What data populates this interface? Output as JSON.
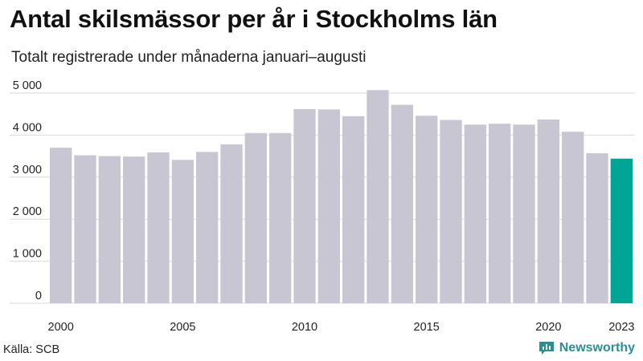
{
  "header": {
    "title": "Antal skilsmässor per år i Stockholms län",
    "subtitle": "Totalt registrerade under månaderna januari–augusti"
  },
  "footer": {
    "source": "Källa: SCB",
    "brand": "Newsworthy"
  },
  "colors": {
    "bar": "#c8c6d2",
    "highlight": "#00a596",
    "grid": "#d8d8d8",
    "brand": "#2c8f8f"
  },
  "chart_data": {
    "type": "bar",
    "title": "Antal skilsmässor per år i Stockholms län",
    "subtitle": "Totalt registrerade under månaderna januari–augusti",
    "xlabel": "",
    "ylabel": "",
    "categories": [
      "2000",
      "2001",
      "2002",
      "2003",
      "2004",
      "2005",
      "2006",
      "2007",
      "2008",
      "2009",
      "2010",
      "2011",
      "2012",
      "2013",
      "2014",
      "2015",
      "2016",
      "2017",
      "2018",
      "2019",
      "2020",
      "2021",
      "2022",
      "2023"
    ],
    "values": [
      3700,
      3520,
      3500,
      3490,
      3590,
      3410,
      3600,
      3780,
      4050,
      4050,
      4620,
      4610,
      4450,
      5070,
      4720,
      4460,
      4360,
      4250,
      4270,
      4250,
      4370,
      4080,
      3570,
      3440
    ],
    "highlight_index": 23,
    "ylim": [
      0,
      5000
    ],
    "yticks": [
      0,
      1000,
      2000,
      3000,
      4000,
      5000
    ],
    "ytick_labels": [
      "0",
      "1 000",
      "2 000",
      "3 000",
      "4 000",
      "5 000"
    ],
    "xtick_labels": [
      {
        "index": 0,
        "label": "2000"
      },
      {
        "index": 5,
        "label": "2005"
      },
      {
        "index": 10,
        "label": "2010"
      },
      {
        "index": 15,
        "label": "2015"
      },
      {
        "index": 20,
        "label": "2020"
      },
      {
        "index": 23,
        "label": "2023"
      }
    ],
    "grid": true
  }
}
